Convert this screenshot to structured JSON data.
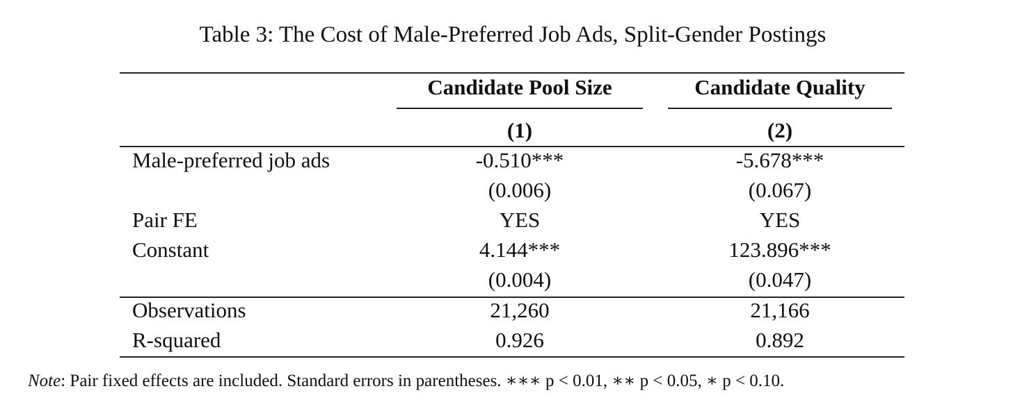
{
  "title": "Table 3: The Cost of Male-Preferred Job Ads, Split-Gender Postings",
  "table": {
    "header": [
      "Candidate Pool Size",
      "Candidate Quality"
    ],
    "column_numbers": [
      "(1)",
      "(2)"
    ],
    "rows": [
      {
        "label": "Male-preferred job ads",
        "values": [
          "-0.510***",
          "-5.678***"
        ],
        "se": [
          "(0.006)",
          "(0.067)"
        ]
      },
      {
        "label": "Pair FE",
        "values": [
          "YES",
          "YES"
        ]
      },
      {
        "label": "Constant",
        "values": [
          "4.144***",
          "123.896***"
        ],
        "se": [
          "(0.004)",
          "(0.047)"
        ]
      }
    ],
    "stats": [
      {
        "label": "Observations",
        "values": [
          "21,260",
          "21,166"
        ]
      },
      {
        "label": "R-squared",
        "values": [
          "0.926",
          "0.892"
        ]
      }
    ]
  },
  "note": {
    "label": "Note",
    "text": ": Pair fixed effects are included. Standard errors in parentheses. ∗∗∗ p < 0.01, ∗∗ p < 0.05, ∗ p < 0.10."
  }
}
